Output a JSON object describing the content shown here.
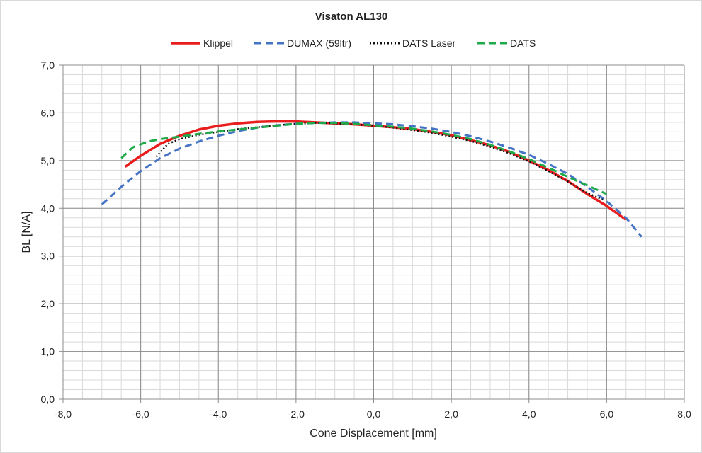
{
  "chart_data": {
    "type": "line",
    "title": "Visaton AL130",
    "xlabel": "Cone Displacement [mm]",
    "ylabel": "BL [N/A]",
    "xlim": [
      -8,
      8
    ],
    "ylim": [
      0,
      7
    ],
    "xticks": [
      -8,
      -6,
      -4,
      -2,
      0,
      2,
      4,
      6,
      8
    ],
    "xtick_labels": [
      "-8,0",
      "-6,0",
      "-4,0",
      "-2,0",
      "0,0",
      "2,0",
      "4,0",
      "6,0",
      "8,0"
    ],
    "yticks": [
      0,
      1,
      2,
      3,
      4,
      5,
      6,
      7
    ],
    "ytick_labels": [
      "0,0",
      "1,0",
      "2,0",
      "3,0",
      "4,0",
      "5,0",
      "6,0",
      "7,0"
    ],
    "grid": true,
    "legend_position": "top",
    "series": [
      {
        "name": "Klippel",
        "color": "#e81e1e",
        "style": "solid",
        "points": [
          [
            -6.4,
            4.87
          ],
          [
            -6.0,
            5.1
          ],
          [
            -5.5,
            5.35
          ],
          [
            -5.0,
            5.52
          ],
          [
            -4.5,
            5.65
          ],
          [
            -4.0,
            5.73
          ],
          [
            -3.5,
            5.78
          ],
          [
            -3.0,
            5.81
          ],
          [
            -2.5,
            5.82
          ],
          [
            -2.0,
            5.82
          ],
          [
            -1.5,
            5.8
          ],
          [
            -1.0,
            5.78
          ],
          [
            -0.5,
            5.76
          ],
          [
            0.0,
            5.73
          ],
          [
            0.5,
            5.7
          ],
          [
            1.0,
            5.66
          ],
          [
            1.5,
            5.6
          ],
          [
            2.0,
            5.53
          ],
          [
            2.5,
            5.43
          ],
          [
            3.0,
            5.32
          ],
          [
            3.5,
            5.18
          ],
          [
            4.0,
            5.0
          ],
          [
            4.5,
            4.8
          ],
          [
            5.0,
            4.57
          ],
          [
            5.5,
            4.3
          ],
          [
            6.0,
            4.05
          ],
          [
            6.5,
            3.76
          ]
        ]
      },
      {
        "name": "DUMAX (59ltr)",
        "color": "#4472c4",
        "style": "dashed",
        "points": [
          [
            -7.0,
            4.08
          ],
          [
            -6.5,
            4.45
          ],
          [
            -6.0,
            4.78
          ],
          [
            -5.5,
            5.05
          ],
          [
            -5.0,
            5.25
          ],
          [
            -4.5,
            5.4
          ],
          [
            -4.0,
            5.52
          ],
          [
            -3.5,
            5.62
          ],
          [
            -3.0,
            5.69
          ],
          [
            -2.5,
            5.74
          ],
          [
            -2.0,
            5.77
          ],
          [
            -1.5,
            5.79
          ],
          [
            -1.0,
            5.8
          ],
          [
            -0.5,
            5.8
          ],
          [
            0.0,
            5.78
          ],
          [
            0.5,
            5.76
          ],
          [
            1.0,
            5.72
          ],
          [
            1.5,
            5.67
          ],
          [
            2.0,
            5.6
          ],
          [
            2.5,
            5.51
          ],
          [
            3.0,
            5.4
          ],
          [
            3.5,
            5.27
          ],
          [
            4.0,
            5.12
          ],
          [
            4.5,
            4.93
          ],
          [
            5.0,
            4.72
          ],
          [
            5.5,
            4.45
          ],
          [
            6.0,
            4.15
          ],
          [
            6.5,
            3.8
          ],
          [
            6.9,
            3.4
          ]
        ]
      },
      {
        "name": "DATS Laser",
        "color": "#111111",
        "style": "dotted",
        "points": [
          [
            -5.6,
            5.08
          ],
          [
            -5.3,
            5.35
          ],
          [
            -5.0,
            5.45
          ],
          [
            -4.5,
            5.54
          ],
          [
            -4.0,
            5.6
          ],
          [
            -3.5,
            5.66
          ],
          [
            -3.0,
            5.7
          ],
          [
            -2.5,
            5.74
          ],
          [
            -2.0,
            5.77
          ],
          [
            -1.5,
            5.79
          ],
          [
            -1.0,
            5.78
          ],
          [
            -0.5,
            5.76
          ],
          [
            0.0,
            5.73
          ],
          [
            0.5,
            5.69
          ],
          [
            1.0,
            5.64
          ],
          [
            1.5,
            5.58
          ],
          [
            2.0,
            5.5
          ],
          [
            2.5,
            5.41
          ],
          [
            3.0,
            5.29
          ],
          [
            3.5,
            5.15
          ],
          [
            4.0,
            4.98
          ],
          [
            4.5,
            4.78
          ],
          [
            5.0,
            4.56
          ],
          [
            5.5,
            4.32
          ],
          [
            5.9,
            4.18
          ]
        ]
      },
      {
        "name": "DATS",
        "color": "#1faa4a",
        "style": "dashed",
        "points": [
          [
            -6.5,
            5.05
          ],
          [
            -6.2,
            5.28
          ],
          [
            -5.8,
            5.4
          ],
          [
            -5.5,
            5.45
          ],
          [
            -5.0,
            5.5
          ],
          [
            -4.5,
            5.56
          ],
          [
            -4.0,
            5.61
          ],
          [
            -3.5,
            5.65
          ],
          [
            -3.0,
            5.69
          ],
          [
            -2.5,
            5.73
          ],
          [
            -2.0,
            5.77
          ],
          [
            -1.5,
            5.79
          ],
          [
            -1.0,
            5.79
          ],
          [
            -0.5,
            5.77
          ],
          [
            0.0,
            5.74
          ],
          [
            0.5,
            5.71
          ],
          [
            1.0,
            5.67
          ],
          [
            1.5,
            5.61
          ],
          [
            2.0,
            5.54
          ],
          [
            2.5,
            5.45
          ],
          [
            3.0,
            5.33
          ],
          [
            3.5,
            5.19
          ],
          [
            4.0,
            5.03
          ],
          [
            4.5,
            4.85
          ],
          [
            5.0,
            4.66
          ],
          [
            5.5,
            4.48
          ],
          [
            6.0,
            4.3
          ]
        ]
      }
    ]
  }
}
